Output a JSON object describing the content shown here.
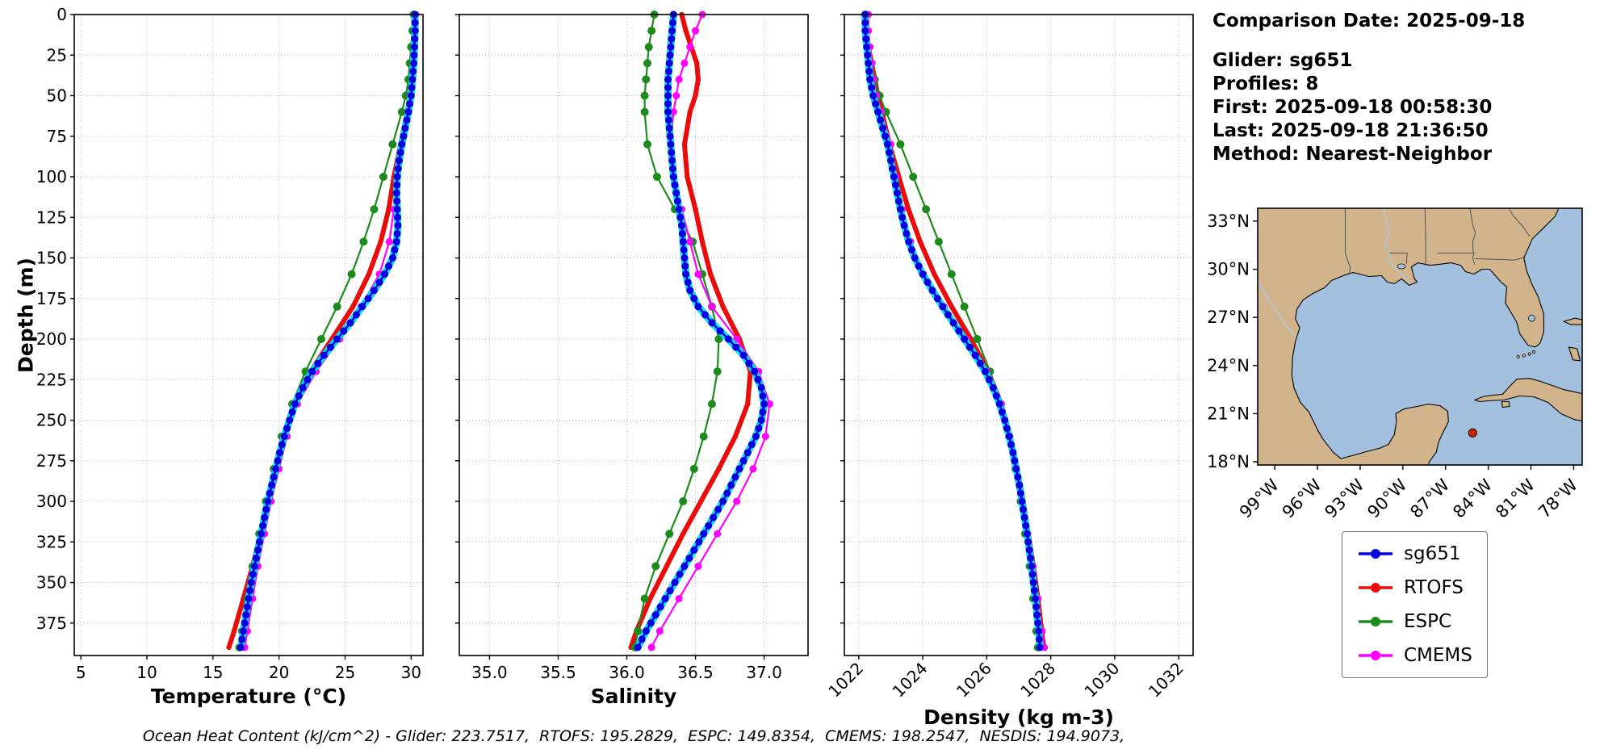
{
  "info_panel": {
    "comparison_date": "Comparison Date: 2025-09-18",
    "lines": [
      "Glider: sg651",
      "Profiles: 8",
      "First: 2025-09-18 00:58:30",
      "Last: 2025-09-18 21:36:50",
      "Method: Nearest-Neighbor"
    ]
  },
  "caption": "Ocean Heat Content (kJ/cm^2) - Glider: 223.7517,  RTOFS: 195.2829,  ESPC: 149.8354,  CMEMS: 198.2547,  NESDIS: 194.9073,",
  "ocean_heat_content": {
    "units": "kJ/cm^2",
    "Glider": 223.7517,
    "RTOFS": 195.2829,
    "ESPC": 149.8354,
    "CMEMS": 198.2547,
    "NESDIS": 194.9073
  },
  "legend": {
    "entries": [
      {
        "label": "sg651",
        "color": "#0000e0"
      },
      {
        "label": "RTOFS",
        "color": "#ea0b0b"
      },
      {
        "label": "ESPC",
        "color": "#1b8c1b"
      },
      {
        "label": "CMEMS",
        "color": "#ff00ff"
      }
    ]
  },
  "map": {
    "land_color": "#d2b48c",
    "water_color": "#a3c0de",
    "lat_ticks": [
      33,
      30,
      27,
      24,
      21,
      18
    ],
    "lat_labels": [
      "33°N",
      "30°N",
      "27°N",
      "24°N",
      "21°N",
      "18°N"
    ],
    "lon_ticks": [
      99,
      96,
      93,
      90,
      87,
      84,
      81,
      78
    ],
    "lon_labels": [
      "99°W",
      "96°W",
      "93°W",
      "90°W",
      "87°W",
      "84°W",
      "81°W",
      "78°W"
    ],
    "lon_range": [
      100.2,
      77.4
    ],
    "lat_range": [
      17.8,
      33.8
    ],
    "marker": {
      "lon_w": 85.1,
      "lat_n": 19.8,
      "color": "#cc2800"
    }
  },
  "chart_data": [
    {
      "type": "line",
      "name": "temperature",
      "xlabel": "Temperature (°C)",
      "ylabel": "Depth (m)",
      "xlim": [
        4.5,
        30.9
      ],
      "ylim": [
        0,
        395
      ],
      "grid": true,
      "xticks": [
        5,
        10,
        15,
        20,
        25,
        30
      ],
      "xtick_labels": [
        "5",
        "10",
        "15",
        "20",
        "25",
        "30"
      ],
      "yticks": [
        0,
        25,
        50,
        75,
        100,
        125,
        150,
        175,
        200,
        225,
        250,
        275,
        300,
        325,
        350,
        375
      ],
      "series": [
        {
          "name": "RTOFS",
          "color": "#ea0b0b",
          "lw": 6,
          "ms": 3.2,
          "depths": [
            0,
            10,
            20,
            30,
            40,
            50,
            60,
            80,
            100,
            120,
            140,
            160,
            180,
            200,
            220,
            240,
            260,
            280,
            300,
            320,
            340,
            360,
            380,
            390
          ],
          "values": [
            30.2,
            30.2,
            30.15,
            30.1,
            30.0,
            29.9,
            29.7,
            29.2,
            28.7,
            28.3,
            27.7,
            26.8,
            25.6,
            24.0,
            22.4,
            21.2,
            20.4,
            19.8,
            19.2,
            18.6,
            18.0,
            17.3,
            16.6,
            16.2
          ]
        },
        {
          "name": "ESPC",
          "color": "#1b8c1b",
          "lw": 2.2,
          "ms": 5,
          "depths": [
            0,
            10,
            20,
            30,
            40,
            50,
            60,
            80,
            100,
            120,
            140,
            160,
            180,
            200,
            220,
            240,
            260,
            280,
            300,
            320,
            340,
            360,
            380,
            390
          ],
          "values": [
            30.2,
            30.1,
            30.0,
            29.9,
            29.8,
            29.6,
            29.3,
            28.6,
            27.9,
            27.2,
            26.4,
            25.5,
            24.4,
            23.2,
            22.0,
            21.0,
            20.2,
            19.6,
            19.0,
            18.5,
            18.0,
            17.6,
            17.2,
            17.0
          ]
        },
        {
          "name": "CMEMS",
          "color": "#ff00ff",
          "lw": 2.2,
          "ms": 4.5,
          "depths": [
            0,
            10,
            20,
            30,
            40,
            50,
            60,
            80,
            100,
            120,
            140,
            160,
            180,
            200,
            220,
            240,
            260,
            280,
            300,
            320,
            340,
            360,
            380,
            390
          ],
          "values": [
            30.35,
            30.3,
            30.25,
            30.2,
            30.1,
            29.95,
            29.75,
            29.3,
            28.95,
            28.7,
            28.35,
            27.6,
            26.2,
            24.6,
            22.8,
            21.4,
            20.6,
            20.0,
            19.4,
            18.9,
            18.4,
            18.0,
            17.6,
            17.4
          ]
        },
        {
          "name": "sg651",
          "color": "#0000e0",
          "lw": 2.5,
          "ms": 4.5,
          "dense": true,
          "halo": "#00dcf0",
          "depths": [
            0,
            10,
            20,
            30,
            40,
            50,
            60,
            70,
            80,
            90,
            100,
            110,
            120,
            130,
            140,
            150,
            160,
            170,
            180,
            190,
            200,
            210,
            220,
            230,
            240,
            250,
            260,
            270,
            280,
            290,
            300,
            310,
            320,
            330,
            340,
            350,
            360,
            370,
            380,
            390
          ],
          "values": [
            30.3,
            30.3,
            30.25,
            30.2,
            30.1,
            30.0,
            29.8,
            29.55,
            29.3,
            29.1,
            28.95,
            28.9,
            28.95,
            29.0,
            28.9,
            28.6,
            28.0,
            27.2,
            26.3,
            25.4,
            24.4,
            23.4,
            22.5,
            21.8,
            21.2,
            20.8,
            20.4,
            20.05,
            19.75,
            19.45,
            19.15,
            18.9,
            18.65,
            18.4,
            18.15,
            17.9,
            17.7,
            17.5,
            17.3,
            17.1
          ]
        }
      ]
    },
    {
      "type": "line",
      "name": "salinity",
      "xlabel": "Salinity",
      "ylabel": "Depth (m)",
      "xlim": [
        34.78,
        37.32
      ],
      "ylim": [
        0,
        395
      ],
      "grid": true,
      "xticks": [
        35.0,
        35.5,
        36.0,
        36.5,
        37.0
      ],
      "xtick_labels": [
        "35.0",
        "35.5",
        "36.0",
        "36.5",
        "37.0"
      ],
      "yticks": [
        0,
        25,
        50,
        75,
        100,
        125,
        150,
        175,
        200,
        225,
        250,
        275,
        300,
        325,
        350,
        375
      ],
      "series": [
        {
          "name": "RTOFS",
          "color": "#ea0b0b",
          "lw": 6,
          "ms": 3.2,
          "depths": [
            0,
            10,
            20,
            30,
            40,
            50,
            60,
            80,
            100,
            120,
            140,
            160,
            180,
            200,
            220,
            240,
            260,
            280,
            300,
            320,
            340,
            360,
            380,
            390
          ],
          "values": [
            36.4,
            36.43,
            36.47,
            36.51,
            36.52,
            36.5,
            36.46,
            36.42,
            36.44,
            36.5,
            36.55,
            36.61,
            36.7,
            36.82,
            36.9,
            36.88,
            36.79,
            36.67,
            36.54,
            36.41,
            36.29,
            36.17,
            36.07,
            36.03
          ]
        },
        {
          "name": "ESPC",
          "color": "#1b8c1b",
          "lw": 2.2,
          "ms": 5,
          "depths": [
            0,
            10,
            20,
            30,
            40,
            50,
            60,
            80,
            100,
            120,
            140,
            160,
            180,
            200,
            220,
            240,
            260,
            280,
            300,
            320,
            340,
            360,
            380,
            390
          ],
          "values": [
            36.2,
            36.18,
            36.16,
            36.15,
            36.14,
            36.13,
            36.13,
            36.15,
            36.22,
            36.35,
            36.48,
            36.55,
            36.62,
            36.67,
            36.66,
            36.62,
            36.56,
            36.49,
            36.41,
            36.31,
            36.21,
            36.13,
            36.08,
            36.06
          ]
        },
        {
          "name": "CMEMS",
          "color": "#ff00ff",
          "lw": 2.2,
          "ms": 4.5,
          "depths": [
            0,
            10,
            20,
            30,
            40,
            50,
            60,
            80,
            100,
            120,
            140,
            160,
            180,
            200,
            220,
            240,
            260,
            280,
            300,
            320,
            340,
            360,
            380,
            390
          ],
          "values": [
            36.55,
            36.5,
            36.46,
            36.42,
            36.38,
            36.36,
            36.34,
            36.32,
            36.34,
            36.4,
            36.46,
            36.52,
            36.62,
            36.8,
            36.96,
            37.04,
            37.01,
            36.92,
            36.8,
            36.66,
            36.52,
            36.38,
            36.24,
            36.18
          ]
        },
        {
          "name": "sg651",
          "color": "#0000e0",
          "lw": 2.5,
          "ms": 4.5,
          "dense": true,
          "halo": "#00dcf0",
          "depths": [
            0,
            10,
            20,
            30,
            40,
            50,
            60,
            70,
            80,
            90,
            100,
            110,
            120,
            130,
            140,
            150,
            160,
            170,
            180,
            190,
            200,
            210,
            220,
            230,
            240,
            250,
            260,
            270,
            280,
            290,
            300,
            310,
            320,
            330,
            340,
            350,
            360,
            370,
            380,
            390
          ],
          "values": [
            36.34,
            36.33,
            36.32,
            36.31,
            36.3,
            36.3,
            36.3,
            36.31,
            36.32,
            36.33,
            36.34,
            36.36,
            36.38,
            36.4,
            36.41,
            36.42,
            36.43,
            36.46,
            36.52,
            36.62,
            36.74,
            36.85,
            36.93,
            36.98,
            37.0,
            36.98,
            36.94,
            36.88,
            36.82,
            36.76,
            36.7,
            36.63,
            36.56,
            36.49,
            36.42,
            36.35,
            36.28,
            36.21,
            36.14,
            36.08
          ]
        }
      ]
    },
    {
      "type": "line",
      "name": "density",
      "xlabel": "Density (kg m-3)",
      "ylabel": "Depth (m)",
      "xlim": [
        1021.55,
        1032.45
      ],
      "ylim": [
        0,
        395
      ],
      "grid": true,
      "rotate_xticks": true,
      "xticks": [
        1022,
        1024,
        1026,
        1028,
        1030,
        1032
      ],
      "xtick_labels": [
        "1022",
        "1024",
        "1026",
        "1028",
        "1030",
        "1032"
      ],
      "yticks": [
        0,
        25,
        50,
        75,
        100,
        125,
        150,
        175,
        200,
        225,
        250,
        275,
        300,
        325,
        350,
        375
      ],
      "series": [
        {
          "name": "RTOFS",
          "color": "#ea0b0b",
          "lw": 6,
          "ms": 3.2,
          "depths": [
            0,
            10,
            20,
            30,
            40,
            50,
            60,
            80,
            100,
            120,
            140,
            160,
            180,
            200,
            220,
            240,
            260,
            280,
            300,
            320,
            340,
            360,
            380,
            390
          ],
          "values": [
            1022.25,
            1022.25,
            1022.3,
            1022.4,
            1022.5,
            1022.6,
            1022.72,
            1022.96,
            1023.25,
            1023.55,
            1023.92,
            1024.36,
            1024.9,
            1025.5,
            1026.05,
            1026.45,
            1026.74,
            1026.95,
            1027.14,
            1027.3,
            1027.46,
            1027.6,
            1027.72,
            1027.78
          ]
        },
        {
          "name": "ESPC",
          "color": "#1b8c1b",
          "lw": 2.2,
          "ms": 5,
          "depths": [
            0,
            10,
            20,
            30,
            40,
            50,
            60,
            80,
            100,
            120,
            140,
            160,
            180,
            200,
            220,
            240,
            260,
            280,
            300,
            320,
            340,
            360,
            380,
            390
          ],
          "values": [
            1022.2,
            1022.25,
            1022.32,
            1022.4,
            1022.5,
            1022.65,
            1022.85,
            1023.3,
            1023.7,
            1024.1,
            1024.5,
            1024.9,
            1025.3,
            1025.7,
            1026.1,
            1026.44,
            1026.7,
            1026.9,
            1027.06,
            1027.2,
            1027.34,
            1027.45,
            1027.55,
            1027.6
          ]
        },
        {
          "name": "CMEMS",
          "color": "#ff00ff",
          "lw": 2.2,
          "ms": 4.5,
          "depths": [
            0,
            10,
            20,
            30,
            40,
            50,
            60,
            80,
            100,
            120,
            140,
            160,
            180,
            200,
            220,
            240,
            260,
            280,
            300,
            320,
            340,
            360,
            380,
            390
          ],
          "values": [
            1022.3,
            1022.3,
            1022.35,
            1022.4,
            1022.46,
            1022.55,
            1022.7,
            1023.0,
            1023.16,
            1023.36,
            1023.62,
            1024.02,
            1024.66,
            1025.36,
            1026.0,
            1026.46,
            1026.72,
            1026.92,
            1027.1,
            1027.28,
            1027.45,
            1027.6,
            1027.73,
            1027.8
          ]
        },
        {
          "name": "sg651",
          "color": "#0000e0",
          "lw": 2.5,
          "ms": 4.5,
          "dense": true,
          "halo": "#00dcf0",
          "depths": [
            0,
            10,
            20,
            30,
            40,
            50,
            60,
            70,
            80,
            90,
            100,
            110,
            120,
            130,
            140,
            150,
            160,
            170,
            180,
            190,
            200,
            210,
            220,
            230,
            240,
            250,
            260,
            270,
            280,
            290,
            300,
            310,
            320,
            330,
            340,
            350,
            360,
            370,
            380,
            390
          ],
          "values": [
            1022.2,
            1022.2,
            1022.25,
            1022.3,
            1022.35,
            1022.45,
            1022.6,
            1022.75,
            1022.9,
            1023.0,
            1023.1,
            1023.2,
            1023.3,
            1023.42,
            1023.56,
            1023.75,
            1024.0,
            1024.3,
            1024.62,
            1024.96,
            1025.3,
            1025.64,
            1025.95,
            1026.2,
            1026.4,
            1026.56,
            1026.7,
            1026.82,
            1026.92,
            1027.02,
            1027.1,
            1027.18,
            1027.26,
            1027.33,
            1027.4,
            1027.46,
            1027.52,
            1027.57,
            1027.62,
            1027.66
          ]
        }
      ]
    }
  ]
}
